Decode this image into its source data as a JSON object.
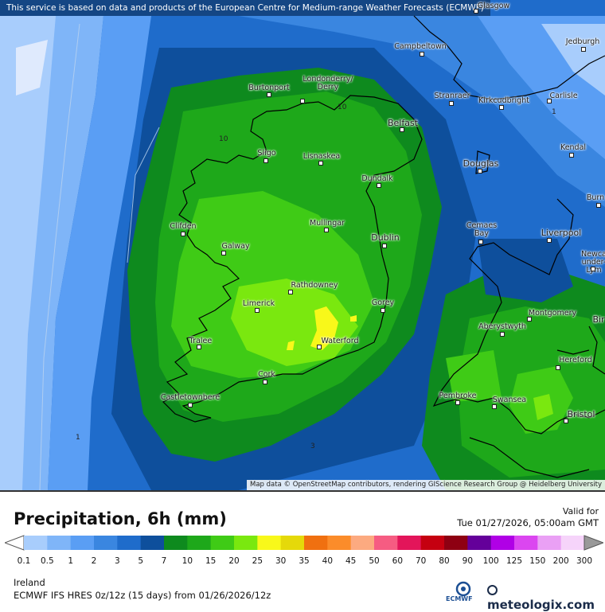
{
  "banner": "This service is based on data and products of the European Centre for Medium-range Weather Forecasts (ECMWF)",
  "attribution": "Map data © OpenStreetMap contributors, rendering GIScience Research Group @ Heidelberg University",
  "title": "Precipitation, 6h (mm)",
  "valid_label": "Valid for",
  "valid_time": "Tue 01/27/2026, 05:00am GMT",
  "region": "Ireland",
  "model_run": "ECMWF IFS HRES 0z/12z (15 days) from 01/26/2026/12z",
  "logos": {
    "ecmwf": "ECMWF",
    "meteologix": "meteologix.com"
  },
  "contour_labels": [
    "10",
    "10",
    "1",
    "1",
    "3"
  ],
  "cities": [
    {
      "name": "Glasgow"
    },
    {
      "name": "Jedburgh"
    },
    {
      "name": "Campbeltown"
    },
    {
      "name": "Burtonport"
    },
    {
      "name": "Londonderry/\nDerry"
    },
    {
      "name": "Stranraer"
    },
    {
      "name": "Kirkcudbright"
    },
    {
      "name": "Carlisle"
    },
    {
      "name": "Belfast"
    },
    {
      "name": "Kendal"
    },
    {
      "name": "Sligo"
    },
    {
      "name": "Lisnaskea"
    },
    {
      "name": "Douglas"
    },
    {
      "name": "Dundalk"
    },
    {
      "name": "Burn"
    },
    {
      "name": "Clifden"
    },
    {
      "name": "Mullingar"
    },
    {
      "name": "Cemaes\nBay"
    },
    {
      "name": "Liverpool"
    },
    {
      "name": "Galway"
    },
    {
      "name": "Dublin"
    },
    {
      "name": "Newca\nunder-\nLym"
    },
    {
      "name": "Rathdowney"
    },
    {
      "name": "Limerick"
    },
    {
      "name": "Gorey"
    },
    {
      "name": "Montgomery"
    },
    {
      "name": "Bir"
    },
    {
      "name": "Aberystwyth"
    },
    {
      "name": "Tralee"
    },
    {
      "name": "Waterford"
    },
    {
      "name": "Hereford"
    },
    {
      "name": "Cork"
    },
    {
      "name": "Pembroke"
    },
    {
      "name": "Swansea"
    },
    {
      "name": "Castletownbere"
    },
    {
      "name": "Bristol"
    }
  ],
  "legend": {
    "ticks": [
      "0.1",
      "0.5",
      "1",
      "2",
      "3",
      "5",
      "7",
      "10",
      "15",
      "20",
      "25",
      "30",
      "35",
      "40",
      "45",
      "50",
      "60",
      "70",
      "80",
      "90",
      "100",
      "125",
      "150",
      "200",
      "300"
    ],
    "colors": [
      "#a8cdfc",
      "#7fb5f8",
      "#5a9ef4",
      "#3a86e0",
      "#1f6ccb",
      "#0e4f9c",
      "#0e8a1e",
      "#1ea81a",
      "#3fcb16",
      "#7ae80f",
      "#f8f81a",
      "#e5d90a",
      "#f07010",
      "#fb8c2a",
      "#fcaa80",
      "#f65c82",
      "#e3155a",
      "#c50010",
      "#8e0012",
      "#64009a",
      "#b000e6",
      "#db46f0",
      "#eaa0f5",
      "#f6d4fa",
      "#dcdcdc",
      "#999999"
    ]
  }
}
